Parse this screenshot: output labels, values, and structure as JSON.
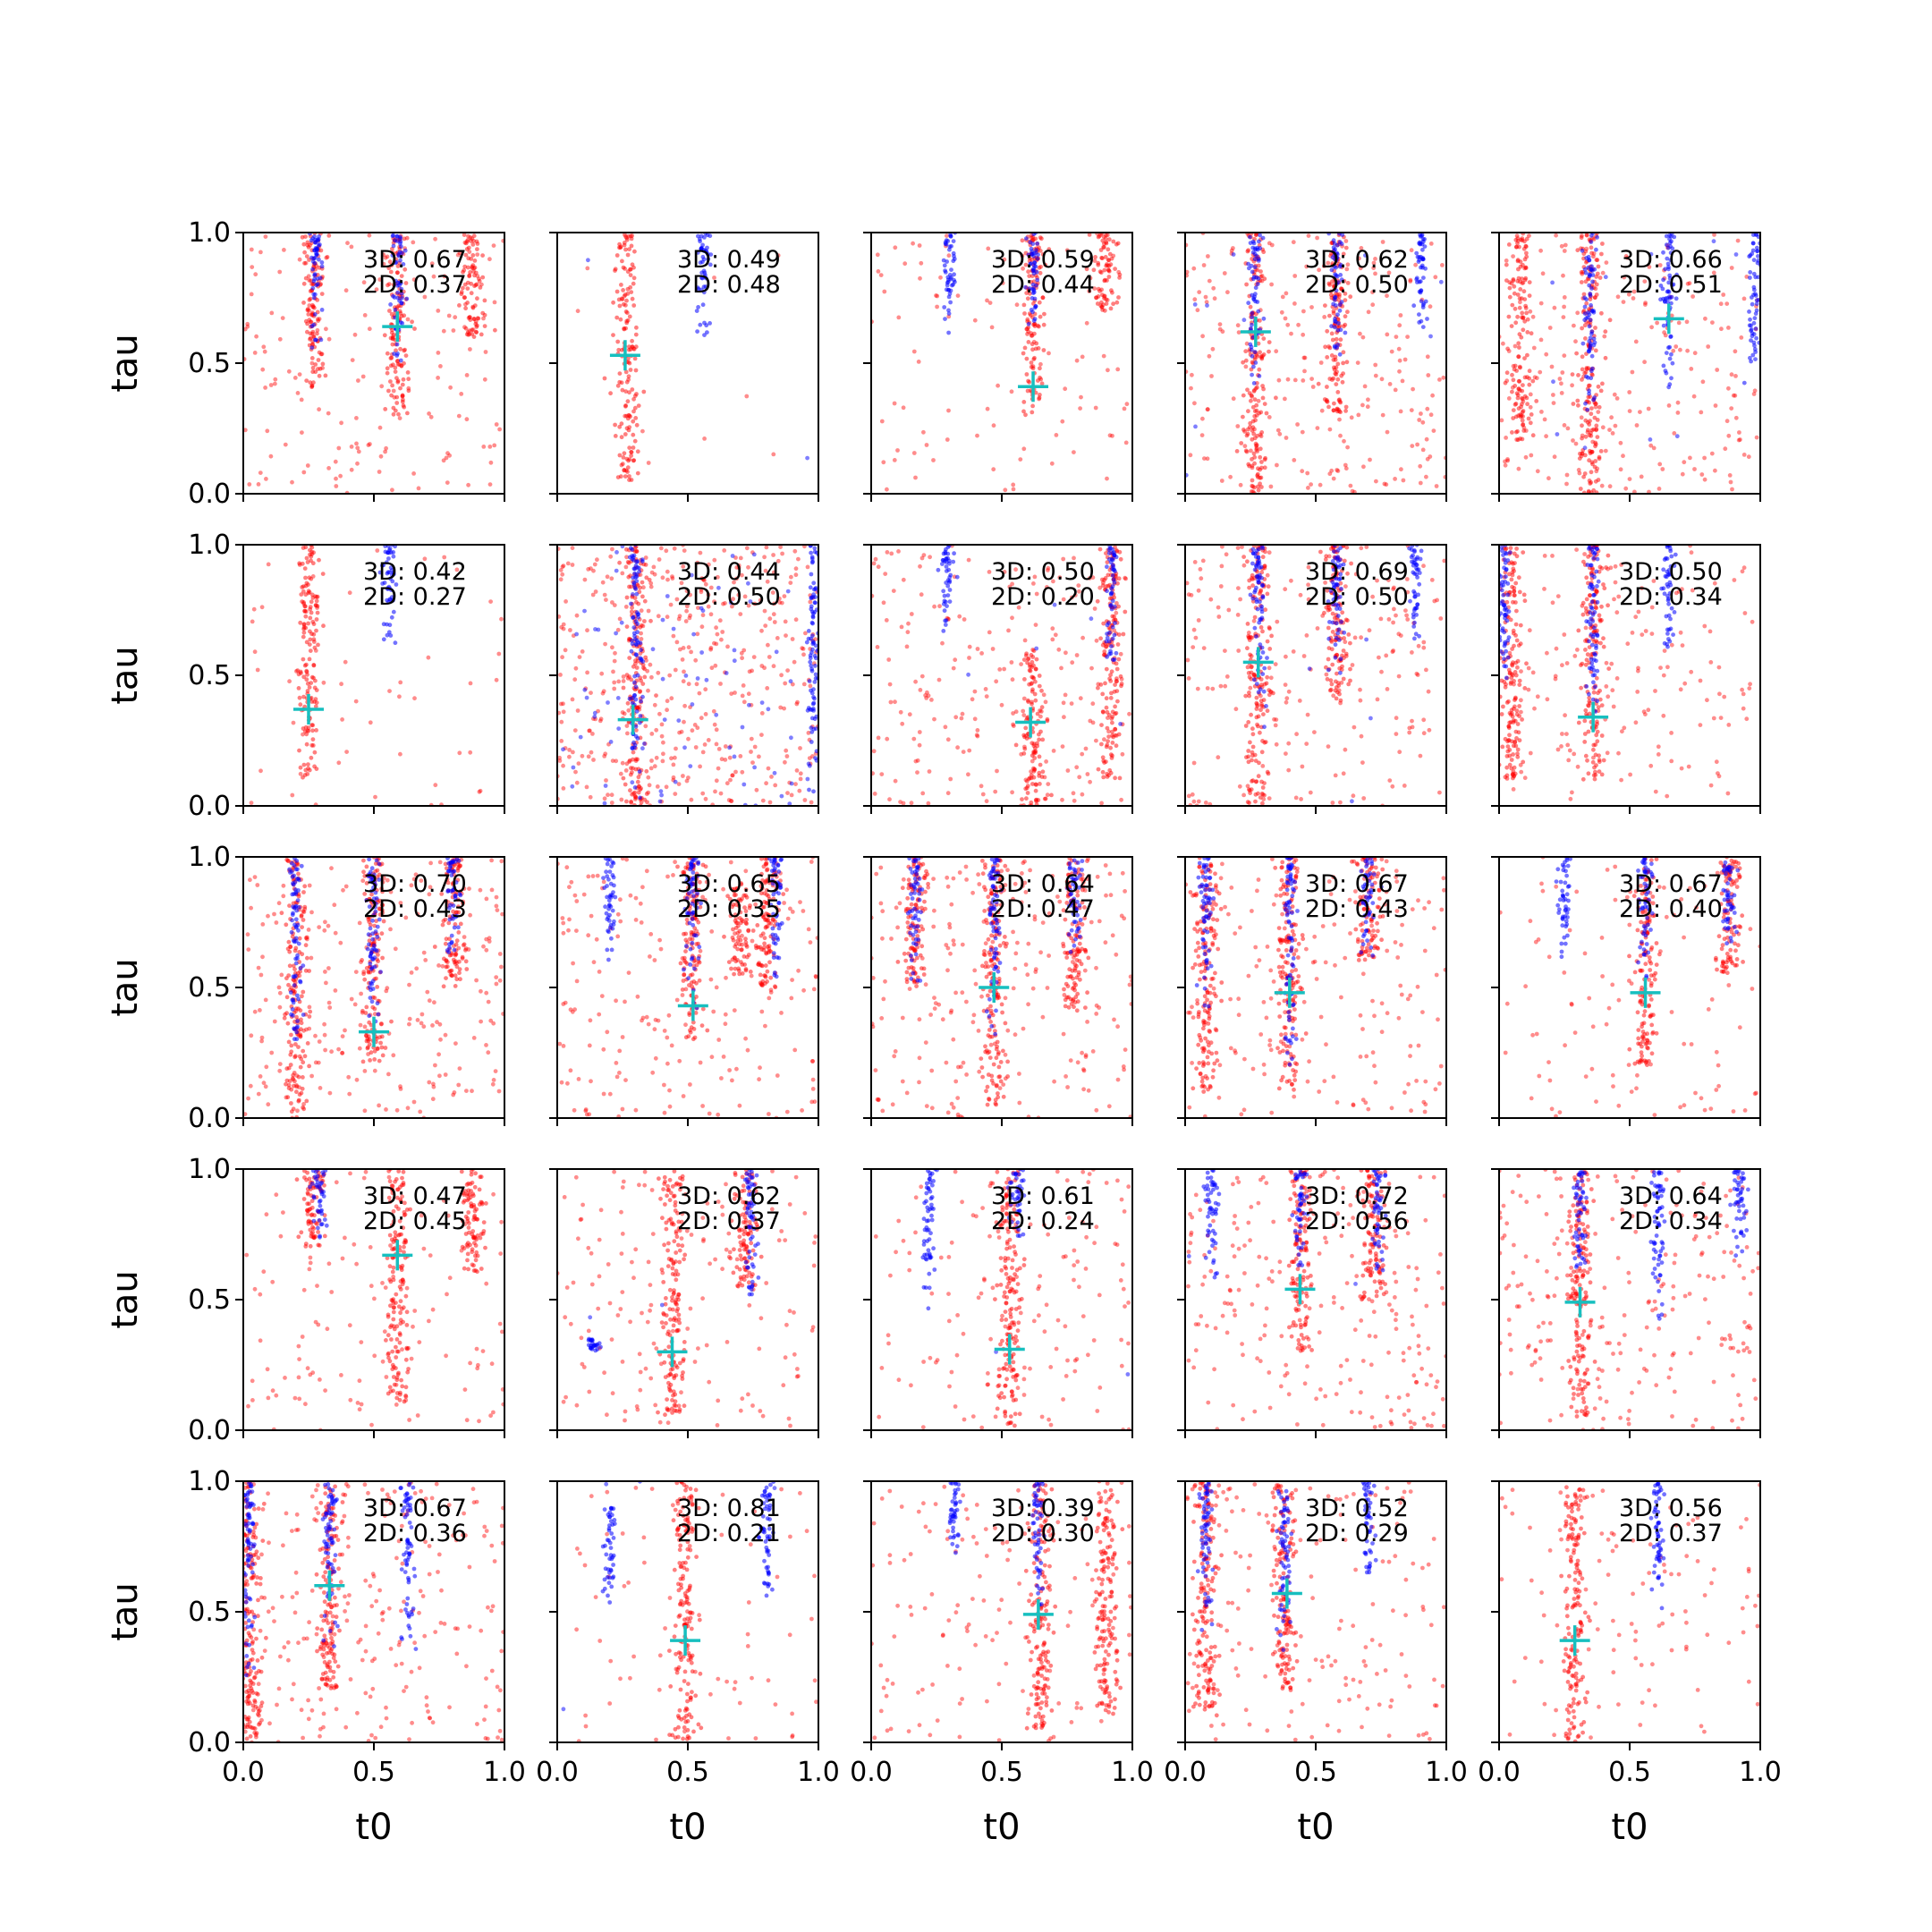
{
  "chart_data": {
    "type": "scatter",
    "layout": "grid 5x5 of scatter subplots",
    "xlabel": "t0",
    "ylabel": "tau",
    "xlim": [
      0,
      1
    ],
    "ylim": [
      0,
      1
    ],
    "xticks": [
      "0.0",
      "0.5",
      "1.0"
    ],
    "yticks": [
      "0.0",
      "0.5",
      "1.0"
    ],
    "grid": false,
    "legend": "none",
    "colors": {
      "red_points": "#ff0000",
      "blue_points": "#0000ff",
      "marker": "#17bfbf",
      "axes": "#000000"
    },
    "panels": [
      {
        "row": 1,
        "col": 1,
        "label_3d": "3D: 0.67",
        "label_2d": "2D: 0.37",
        "marker": [
          0.59,
          0.64
        ],
        "red_clusters": [
          [
            0.27,
            0.4,
            1.0
          ],
          [
            0.59,
            0.3,
            1.0
          ],
          [
            0.88,
            0.6,
            1.0
          ]
        ],
        "blue_clusters": [
          [
            0.28,
            0.55,
            1.0
          ],
          [
            0.59,
            0.5,
            1.0
          ]
        ],
        "red_scatter": 160,
        "blue_scatter": 0
      },
      {
        "row": 1,
        "col": 2,
        "label_3d": "3D: 0.49",
        "label_2d": "2D: 0.48",
        "marker": [
          0.26,
          0.53
        ],
        "red_clusters": [
          [
            0.27,
            0.05,
            1.0
          ]
        ],
        "blue_clusters": [
          [
            0.56,
            0.55,
            1.0
          ]
        ],
        "red_scatter": 10,
        "blue_scatter": 2
      },
      {
        "row": 1,
        "col": 3,
        "label_3d": "3D: 0.59",
        "label_2d": "2D: 0.44",
        "marker": [
          0.62,
          0.41
        ],
        "red_clusters": [
          [
            0.62,
            0.3,
            1.0
          ],
          [
            0.9,
            0.7,
            1.0
          ]
        ],
        "blue_clusters": [
          [
            0.3,
            0.6,
            1.0
          ],
          [
            0.62,
            0.6,
            1.0
          ]
        ],
        "red_scatter": 90,
        "blue_scatter": 0
      },
      {
        "row": 1,
        "col": 4,
        "label_3d": "3D: 0.62",
        "label_2d": "2D: 0.50",
        "marker": [
          0.27,
          0.62
        ],
        "red_clusters": [
          [
            0.27,
            0.0,
            1.0
          ],
          [
            0.58,
            0.3,
            1.0
          ]
        ],
        "blue_clusters": [
          [
            0.27,
            0.4,
            1.0
          ],
          [
            0.58,
            0.5,
            1.0
          ],
          [
            0.9,
            0.6,
            1.0
          ]
        ],
        "red_scatter": 220,
        "blue_scatter": 10
      },
      {
        "row": 1,
        "col": 5,
        "label_3d": "3D: 0.66",
        "label_2d": "2D: 0.51",
        "marker": [
          0.65,
          0.67
        ],
        "red_clusters": [
          [
            0.35,
            0.0,
            1.0
          ],
          [
            0.08,
            0.2,
            1.0
          ]
        ],
        "blue_clusters": [
          [
            0.35,
            0.3,
            1.0
          ],
          [
            0.65,
            0.35,
            1.0
          ],
          [
            0.98,
            0.4,
            1.0
          ]
        ],
        "red_scatter": 230,
        "blue_scatter": 10
      },
      {
        "row": 2,
        "col": 1,
        "label_3d": "3D: 0.42",
        "label_2d": "2D: 0.27",
        "marker": [
          0.25,
          0.37
        ],
        "red_clusters": [
          [
            0.25,
            0.1,
            1.0
          ]
        ],
        "blue_clusters": [
          [
            0.56,
            0.55,
            1.0
          ]
        ],
        "red_scatter": 50,
        "blue_scatter": 0
      },
      {
        "row": 2,
        "col": 2,
        "label_3d": "3D: 0.44",
        "label_2d": "2D: 0.50",
        "marker": [
          0.29,
          0.33
        ],
        "red_clusters": [
          [
            0.3,
            0.0,
            1.0
          ]
        ],
        "blue_clusters": [
          [
            0.3,
            0.0,
            1.0
          ],
          [
            0.98,
            0.0,
            1.0
          ]
        ],
        "red_scatter": 450,
        "blue_scatter": 80
      },
      {
        "row": 2,
        "col": 3,
        "label_3d": "3D: 0.50",
        "label_2d": "2D: 0.20",
        "marker": [
          0.61,
          0.32
        ],
        "red_clusters": [
          [
            0.62,
            0.0,
            0.6
          ],
          [
            0.92,
            0.1,
            1.0
          ]
        ],
        "blue_clusters": [
          [
            0.29,
            0.65,
            1.0
          ],
          [
            0.92,
            0.5,
            1.0
          ]
        ],
        "red_scatter": 220,
        "blue_scatter": 5
      },
      {
        "row": 2,
        "col": 4,
        "label_3d": "3D: 0.69",
        "label_2d": "2D: 0.50",
        "marker": [
          0.28,
          0.55
        ],
        "red_clusters": [
          [
            0.28,
            0.0,
            1.0
          ],
          [
            0.58,
            0.4,
            1.0
          ]
        ],
        "blue_clusters": [
          [
            0.28,
            0.3,
            1.0
          ],
          [
            0.58,
            0.45,
            1.0
          ],
          [
            0.88,
            0.6,
            1.0
          ]
        ],
        "red_scatter": 200,
        "blue_scatter": 5
      },
      {
        "row": 2,
        "col": 5,
        "label_3d": "3D: 0.50",
        "label_2d": "2D: 0.34",
        "marker": [
          0.36,
          0.34
        ],
        "red_clusters": [
          [
            0.36,
            0.1,
            1.0
          ],
          [
            0.05,
            0.1,
            1.0
          ]
        ],
        "blue_clusters": [
          [
            0.36,
            0.3,
            1.0
          ],
          [
            0.65,
            0.6,
            1.0
          ],
          [
            0.02,
            0.4,
            1.0
          ]
        ],
        "red_scatter": 160,
        "blue_scatter": 0
      },
      {
        "row": 3,
        "col": 1,
        "label_3d": "3D: 0.70",
        "label_2d": "2D: 0.43",
        "marker": [
          0.5,
          0.33
        ],
        "red_clusters": [
          [
            0.2,
            0.0,
            1.0
          ],
          [
            0.5,
            0.2,
            1.0
          ],
          [
            0.8,
            0.5,
            1.0
          ]
        ],
        "blue_clusters": [
          [
            0.2,
            0.2,
            1.0
          ],
          [
            0.5,
            0.3,
            1.0
          ],
          [
            0.8,
            0.6,
            1.0
          ]
        ],
        "red_scatter": 230,
        "blue_scatter": 0
      },
      {
        "row": 3,
        "col": 2,
        "label_3d": "3D: 0.65",
        "label_2d": "2D: 0.35",
        "marker": [
          0.52,
          0.43
        ],
        "red_clusters": [
          [
            0.52,
            0.3,
            1.0
          ],
          [
            0.8,
            0.5,
            1.0
          ],
          [
            0.7,
            0.55,
            0.9
          ]
        ],
        "blue_clusters": [
          [
            0.2,
            0.6,
            1.0
          ],
          [
            0.52,
            0.4,
            1.0
          ],
          [
            0.84,
            0.5,
            1.0
          ]
        ],
        "red_scatter": 200,
        "blue_scatter": 0
      },
      {
        "row": 3,
        "col": 3,
        "label_3d": "3D: 0.64",
        "label_2d": "2D: 0.47",
        "marker": [
          0.47,
          0.5
        ],
        "red_clusters": [
          [
            0.47,
            0.05,
            1.0
          ],
          [
            0.17,
            0.5,
            1.0
          ],
          [
            0.78,
            0.4,
            1.0
          ]
        ],
        "blue_clusters": [
          [
            0.17,
            0.5,
            1.0
          ],
          [
            0.47,
            0.3,
            1.0
          ],
          [
            0.78,
            0.6,
            1.0
          ]
        ],
        "red_scatter": 220,
        "blue_scatter": 0
      },
      {
        "row": 3,
        "col": 4,
        "label_3d": "3D: 0.67",
        "label_2d": "2D: 0.43",
        "marker": [
          0.4,
          0.48
        ],
        "red_clusters": [
          [
            0.08,
            0.1,
            1.0
          ],
          [
            0.4,
            0.1,
            1.0
          ],
          [
            0.7,
            0.6,
            1.0
          ]
        ],
        "blue_clusters": [
          [
            0.08,
            0.4,
            1.0
          ],
          [
            0.4,
            0.2,
            1.0
          ],
          [
            0.7,
            0.6,
            1.0
          ]
        ],
        "red_scatter": 180,
        "blue_scatter": 0
      },
      {
        "row": 3,
        "col": 5,
        "label_3d": "3D: 0.67",
        "label_2d": "2D: 0.40",
        "marker": [
          0.56,
          0.48
        ],
        "red_clusters": [
          [
            0.56,
            0.2,
            1.0
          ],
          [
            0.88,
            0.55,
            1.0
          ]
        ],
        "blue_clusters": [
          [
            0.25,
            0.6,
            1.0
          ],
          [
            0.56,
            0.5,
            1.0
          ],
          [
            0.88,
            0.6,
            1.0
          ]
        ],
        "red_scatter": 100,
        "blue_scatter": 0
      },
      {
        "row": 4,
        "col": 1,
        "label_3d": "3D: 0.47",
        "label_2d": "2D: 0.45",
        "marker": [
          0.59,
          0.67
        ],
        "red_clusters": [
          [
            0.59,
            0.1,
            1.0
          ],
          [
            0.88,
            0.6,
            1.0
          ],
          [
            0.27,
            0.7,
            1.0
          ]
        ],
        "blue_clusters": [
          [
            0.29,
            0.7,
            1.0
          ]
        ],
        "red_scatter": 120,
        "blue_scatter": 0
      },
      {
        "row": 4,
        "col": 2,
        "label_3d": "3D: 0.62",
        "label_2d": "2D: 0.37",
        "marker": [
          0.44,
          0.3
        ],
        "red_clusters": [
          [
            0.44,
            0.05,
            1.0
          ],
          [
            0.72,
            0.55,
            1.0
          ]
        ],
        "blue_clusters": [
          [
            0.74,
            0.45,
            1.0
          ],
          [
            0.14,
            0.3,
            0.35
          ]
        ],
        "red_scatter": 150,
        "blue_scatter": 2
      },
      {
        "row": 4,
        "col": 3,
        "label_3d": "3D: 0.61",
        "label_2d": "2D: 0.24",
        "marker": [
          0.53,
          0.31
        ],
        "red_clusters": [
          [
            0.53,
            0.0,
            1.0
          ]
        ],
        "blue_clusters": [
          [
            0.22,
            0.45,
            1.0
          ],
          [
            0.56,
            0.7,
            1.0
          ]
        ],
        "red_scatter": 140,
        "blue_scatter": 2
      },
      {
        "row": 4,
        "col": 4,
        "label_3d": "3D: 0.72",
        "label_2d": "2D: 0.56",
        "marker": [
          0.44,
          0.54
        ],
        "red_clusters": [
          [
            0.44,
            0.3,
            1.0
          ],
          [
            0.72,
            0.5,
            1.0
          ]
        ],
        "blue_clusters": [
          [
            0.1,
            0.55,
            1.0
          ],
          [
            0.44,
            0.6,
            1.0
          ],
          [
            0.74,
            0.6,
            1.0
          ]
        ],
        "red_scatter": 220,
        "blue_scatter": 2
      },
      {
        "row": 4,
        "col": 5,
        "label_3d": "3D: 0.64",
        "label_2d": "2D: 0.34",
        "marker": [
          0.31,
          0.49
        ],
        "red_clusters": [
          [
            0.31,
            0.05,
            1.0
          ]
        ],
        "blue_clusters": [
          [
            0.31,
            0.55,
            1.0
          ],
          [
            0.61,
            0.4,
            1.0
          ],
          [
            0.92,
            0.6,
            1.0
          ]
        ],
        "red_scatter": 230,
        "blue_scatter": 0
      },
      {
        "row": 5,
        "col": 1,
        "label_3d": "3D: 0.67",
        "label_2d": "2D: 0.36",
        "marker": [
          0.33,
          0.6
        ],
        "red_clusters": [
          [
            0.33,
            0.2,
            1.0
          ],
          [
            0.03,
            0.0,
            1.0
          ]
        ],
        "blue_clusters": [
          [
            0.02,
            0.2,
            1.0
          ],
          [
            0.33,
            0.35,
            1.0
          ],
          [
            0.63,
            0.35,
            1.0
          ]
        ],
        "red_scatter": 230,
        "blue_scatter": 0
      },
      {
        "row": 5,
        "col": 2,
        "label_3d": "3D: 0.81",
        "label_2d": "2D: 0.21",
        "marker": [
          0.49,
          0.39
        ],
        "red_clusters": [
          [
            0.49,
            0.0,
            1.0
          ]
        ],
        "blue_clusters": [
          [
            0.8,
            0.5,
            1.0
          ],
          [
            0.2,
            0.5,
            0.9
          ]
        ],
        "red_scatter": 70,
        "blue_scatter": 5
      },
      {
        "row": 5,
        "col": 3,
        "label_3d": "3D: 0.39",
        "label_2d": "2D: 0.30",
        "marker": [
          0.64,
          0.49
        ],
        "red_clusters": [
          [
            0.65,
            0.05,
            1.0
          ],
          [
            0.9,
            0.1,
            1.0
          ]
        ],
        "blue_clusters": [
          [
            0.32,
            0.7,
            1.0
          ],
          [
            0.64,
            0.5,
            1.0
          ]
        ],
        "red_scatter": 140,
        "blue_scatter": 0
      },
      {
        "row": 5,
        "col": 4,
        "label_3d": "3D: 0.52",
        "label_2d": "2D: 0.29",
        "marker": [
          0.39,
          0.57
        ],
        "red_clusters": [
          [
            0.08,
            0.1,
            1.0
          ],
          [
            0.38,
            0.2,
            1.0
          ]
        ],
        "blue_clusters": [
          [
            0.08,
            0.4,
            1.0
          ],
          [
            0.38,
            0.35,
            1.0
          ],
          [
            0.7,
            0.6,
            1.0
          ]
        ],
        "red_scatter": 160,
        "blue_scatter": 0
      },
      {
        "row": 5,
        "col": 5,
        "label_3d": "3D: 0.56",
        "label_2d": "2D: 0.37",
        "marker": [
          0.29,
          0.39
        ],
        "red_clusters": [
          [
            0.29,
            0.0,
            1.0
          ]
        ],
        "blue_clusters": [
          [
            0.61,
            0.5,
            1.0
          ]
        ],
        "red_scatter": 100,
        "blue_scatter": 0
      }
    ]
  }
}
